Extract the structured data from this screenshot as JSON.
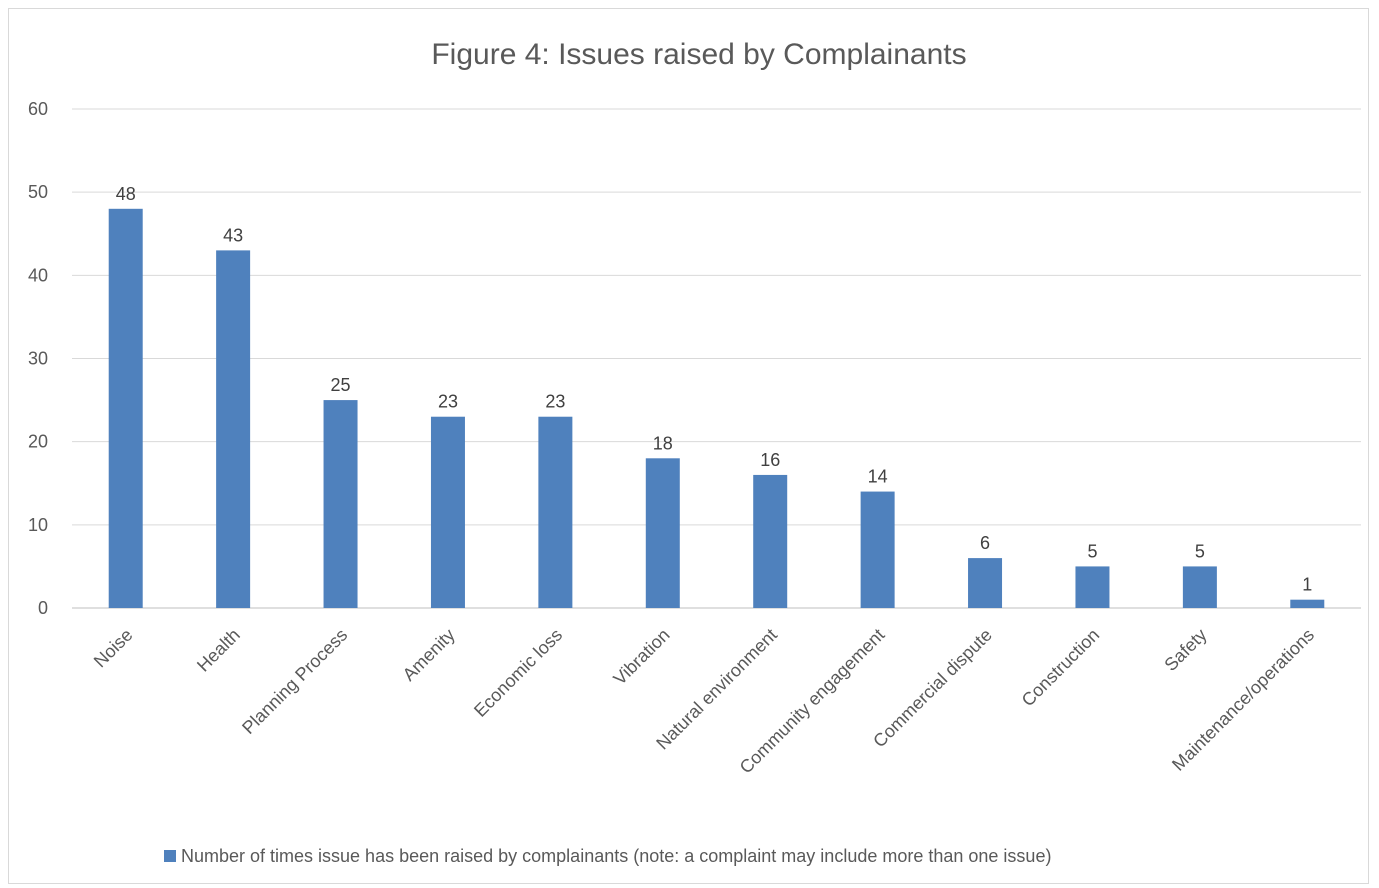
{
  "chart_data": {
    "type": "bar",
    "title": "Figure 4: Issues raised by Complainants",
    "categories": [
      "Noise",
      "Health",
      "Planning Process",
      "Amenity",
      "Economic loss",
      "Vibration",
      "Natural environment",
      "Community engagement",
      "Commercial dispute",
      "Construction",
      "Safety",
      "Maintenance/operations"
    ],
    "series": [
      {
        "name": "Number of times issue has been raised by complainants (note: a complaint may include more than one issue)",
        "values": [
          48,
          43,
          25,
          23,
          23,
          18,
          16,
          14,
          6,
          5,
          5,
          1
        ],
        "color": "#4f81bd"
      }
    ],
    "ylim": [
      0,
      60
    ],
    "yticks": [
      0,
      10,
      20,
      30,
      40,
      50,
      60
    ],
    "xlabel": "",
    "ylabel": "",
    "grid": true,
    "data_labels": true,
    "legend_position": "bottom"
  }
}
